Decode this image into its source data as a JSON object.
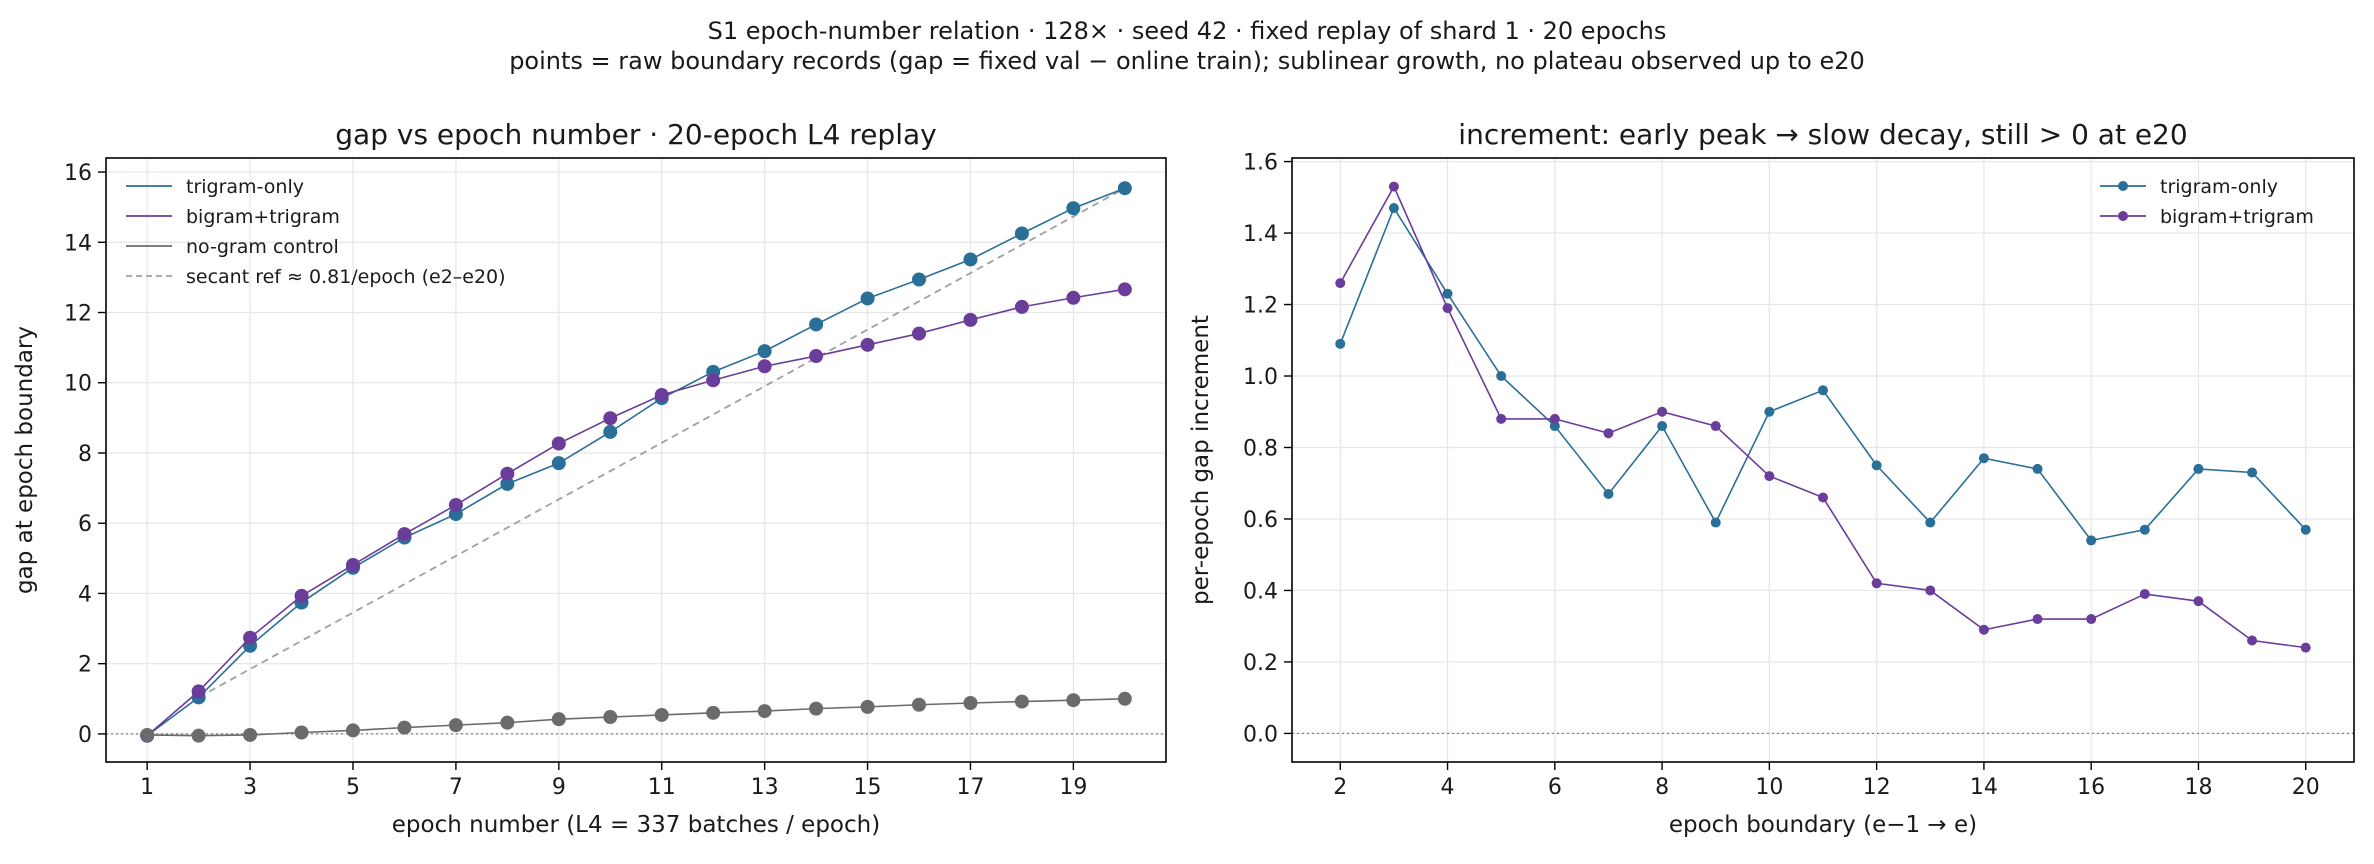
{
  "figure": {
    "suptitle_line1": "S1 epoch-number relation · 128× · seed 42 · fixed replay of shard 1 · 20 epochs",
    "suptitle_line2": "points = raw boundary records (gap = fixed val − online train); sublinear growth, no plateau observed up to e20"
  },
  "colors": {
    "trigram": "#2a6f97",
    "bigram": "#6a3d9a",
    "control": "#6b6b6b",
    "secant": "#a0a0a0",
    "zero_line": "#808080",
    "grid": "#e6e6e6"
  },
  "chart_data": [
    {
      "type": "line",
      "title": "gap vs epoch number · 20-epoch L4 replay",
      "xlabel": "epoch number (L4 = 337 batches / epoch)",
      "ylabel": "gap at epoch boundary",
      "xlim": [
        0.2,
        20.8
      ],
      "ylim": [
        -0.8,
        16.4
      ],
      "xticks": [
        1,
        3,
        5,
        7,
        9,
        11,
        13,
        15,
        17,
        19
      ],
      "yticks": [
        0,
        2,
        4,
        6,
        8,
        10,
        12,
        14,
        16
      ],
      "grid": true,
      "legend_position": "top-left",
      "zero_line": true,
      "x": [
        1,
        2,
        3,
        4,
        5,
        6,
        7,
        8,
        9,
        10,
        11,
        12,
        13,
        14,
        15,
        16,
        17,
        18,
        19,
        20
      ],
      "series": [
        {
          "name": "trigram-only",
          "color": "#2a6f97",
          "values": [
            -0.05,
            1.04,
            2.51,
            3.74,
            4.73,
            5.59,
            6.26,
            7.12,
            7.71,
            8.6,
            9.56,
            10.31,
            10.9,
            11.66,
            12.4,
            12.94,
            13.51,
            14.25,
            14.97,
            15.54
          ]
        },
        {
          "name": "bigram+trigram",
          "color": "#6a3d9a",
          "values": [
            -0.05,
            1.21,
            2.74,
            3.93,
            4.81,
            5.69,
            6.52,
            7.41,
            8.27,
            8.99,
            9.65,
            10.07,
            10.47,
            10.76,
            11.08,
            11.4,
            11.79,
            12.16,
            12.42,
            12.66
          ]
        },
        {
          "name": "no-gram control",
          "color": "#6b6b6b",
          "values": [
            -0.03,
            -0.05,
            -0.03,
            0.04,
            0.1,
            0.18,
            0.25,
            0.32,
            0.42,
            0.48,
            0.54,
            0.6,
            0.65,
            0.72,
            0.77,
            0.83,
            0.88,
            0.92,
            0.96,
            1.0
          ]
        }
      ],
      "reference_line": {
        "name": "secant ref ≈ 0.81/epoch (e2–e20)",
        "x": [
          2,
          20
        ],
        "y": [
          1.04,
          15.54
        ]
      }
    },
    {
      "type": "line",
      "title": "increment: early peak → slow decay, still > 0 at e20",
      "xlabel": "epoch boundary (e−1 → e)",
      "ylabel": "per-epoch gap increment",
      "xlim": [
        1.1,
        20.9
      ],
      "ylim": [
        -0.08,
        1.61
      ],
      "xticks": [
        2,
        4,
        6,
        8,
        10,
        12,
        14,
        16,
        18,
        20
      ],
      "yticks": [
        0.0,
        0.2,
        0.4,
        0.6,
        0.8,
        1.0,
        1.2,
        1.4,
        1.6
      ],
      "ytick_labels": [
        "0.0",
        "0.2",
        "0.4",
        "0.6",
        "0.8",
        "1.0",
        "1.2",
        "1.4",
        "1.6"
      ],
      "grid": true,
      "legend_position": "top-right",
      "zero_line": true,
      "x": [
        2,
        3,
        4,
        5,
        6,
        7,
        8,
        9,
        10,
        11,
        12,
        13,
        14,
        15,
        16,
        17,
        18,
        19,
        20
      ],
      "series": [
        {
          "name": "trigram-only",
          "color": "#2a6f97",
          "values": [
            1.09,
            1.47,
            1.23,
            1.0,
            0.86,
            0.67,
            0.86,
            0.59,
            0.9,
            0.96,
            0.75,
            0.59,
            0.77,
            0.74,
            0.54,
            0.57,
            0.74,
            0.73,
            0.57
          ]
        },
        {
          "name": "bigram+trigram",
          "color": "#6a3d9a",
          "values": [
            1.26,
            1.53,
            1.19,
            0.88,
            0.88,
            0.84,
            0.9,
            0.86,
            0.72,
            0.66,
            0.42,
            0.4,
            0.29,
            0.32,
            0.32,
            0.39,
            0.37,
            0.26,
            0.24
          ]
        }
      ]
    }
  ]
}
